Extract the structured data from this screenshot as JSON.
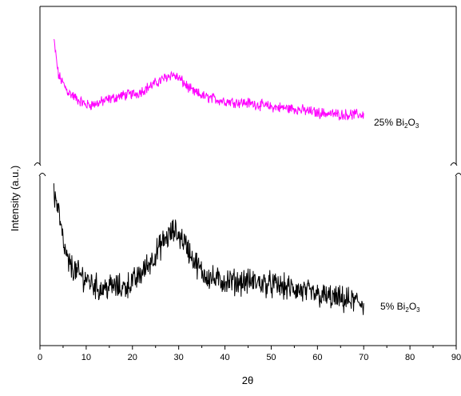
{
  "chart_data": {
    "type": "line",
    "xlabel": "2θ",
    "ylabel": "Intensity (a.u.)",
    "xlim": [
      0,
      90
    ],
    "x_ticks": [
      0,
      10,
      20,
      30,
      40,
      50,
      60,
      70,
      80,
      90
    ],
    "y_tick_labels": "none",
    "y_axis_break": true,
    "grid": false,
    "legend": "none",
    "series": [
      {
        "name": "25% Bi2O3",
        "label_parts": [
          "25% Bi",
          "2",
          "O",
          "3"
        ],
        "color": "#ff00ff",
        "panel": "upper",
        "x_range": [
          3,
          70
        ],
        "profile": [
          [
            3,
            0.92
          ],
          [
            4,
            0.55
          ],
          [
            6,
            0.38
          ],
          [
            8,
            0.3
          ],
          [
            10,
            0.24
          ],
          [
            12,
            0.25
          ],
          [
            15,
            0.3
          ],
          [
            18,
            0.34
          ],
          [
            21,
            0.36
          ],
          [
            24,
            0.44
          ],
          [
            27,
            0.52
          ],
          [
            28.5,
            0.56
          ],
          [
            30,
            0.52
          ],
          [
            33,
            0.38
          ],
          [
            36,
            0.32
          ],
          [
            40,
            0.28
          ],
          [
            45,
            0.26
          ],
          [
            50,
            0.22
          ],
          [
            55,
            0.2
          ],
          [
            60,
            0.16
          ],
          [
            65,
            0.14
          ],
          [
            70,
            0.14
          ]
        ],
        "noise": 0.045
      },
      {
        "name": "5% Bi2O3",
        "label_parts": [
          "5% Bi",
          "2",
          "O",
          "3"
        ],
        "color": "#000000",
        "panel": "lower",
        "x_range": [
          3,
          70
        ],
        "profile": [
          [
            3,
            0.92
          ],
          [
            4,
            0.8
          ],
          [
            5,
            0.58
          ],
          [
            6,
            0.45
          ],
          [
            8,
            0.38
          ],
          [
            10,
            0.34
          ],
          [
            13,
            0.27
          ],
          [
            15,
            0.29
          ],
          [
            18,
            0.28
          ],
          [
            21,
            0.34
          ],
          [
            24,
            0.46
          ],
          [
            27,
            0.6
          ],
          [
            29,
            0.66
          ],
          [
            31,
            0.6
          ],
          [
            33,
            0.48
          ],
          [
            35,
            0.38
          ],
          [
            38,
            0.33
          ],
          [
            42,
            0.32
          ],
          [
            46,
            0.32
          ],
          [
            50,
            0.3
          ],
          [
            55,
            0.27
          ],
          [
            60,
            0.23
          ],
          [
            65,
            0.2
          ],
          [
            70,
            0.18
          ]
        ],
        "noise": 0.07
      }
    ]
  }
}
